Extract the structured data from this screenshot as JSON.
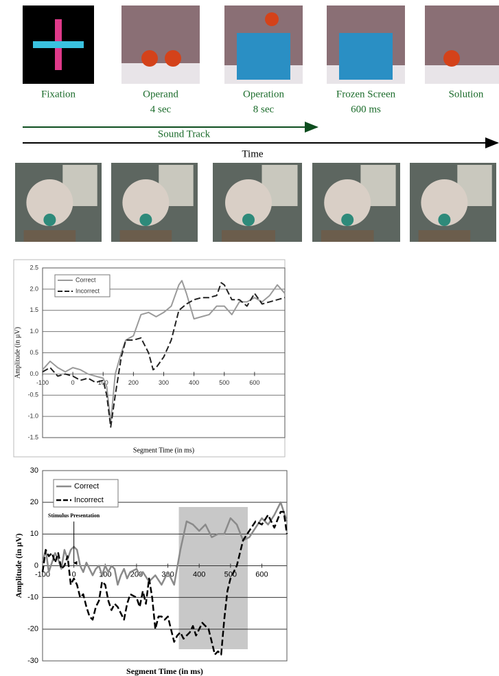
{
  "panels": [
    {
      "label": "Fixation"
    },
    {
      "label": "Operand",
      "duration": "4 sec"
    },
    {
      "label": "Operation",
      "duration": "8 sec"
    },
    {
      "label": "Frozen Screen",
      "duration": "600 ms"
    },
    {
      "label": "Solution"
    }
  ],
  "timeline": {
    "sound_track": "Sound Track",
    "time": "Time"
  },
  "chart_data": [
    {
      "type": "line",
      "xlabel": "Segment Time (in ms)",
      "ylabel": "Amplitude (in µV)",
      "xlim": [
        -100,
        700
      ],
      "ylim": [
        -1.5,
        2.5
      ],
      "xticks": [
        -100,
        0,
        100,
        200,
        300,
        400,
        500,
        600
      ],
      "yticks": [
        -1.5,
        {
          "value": -1,
          "label": "-1.0"
        },
        -0.5,
        {
          "value": 0,
          "label": "0.0"
        },
        0.5,
        {
          "value": 1,
          "label": "1.0"
        },
        1.5,
        {
          "value": 2,
          "label": "2.0"
        },
        2.5
      ],
      "grid": true,
      "series": [
        {
          "name": "Correct",
          "color": "#9a9a9a",
          "dash": false,
          "x": [
            -100,
            -75,
            -50,
            -25,
            0,
            25,
            50,
            75,
            100,
            112,
            125,
            140,
            160,
            175,
            200,
            225,
            250,
            275,
            300,
            325,
            350,
            360,
            375,
            400,
            425,
            450,
            475,
            500,
            525,
            550,
            575,
            600,
            625,
            650,
            675,
            700
          ],
          "values": [
            0.1,
            0.3,
            0.15,
            0.05,
            0.15,
            0.1,
            0.0,
            -0.05,
            -0.1,
            -0.3,
            -1.15,
            0.0,
            0.5,
            0.8,
            0.9,
            1.4,
            1.45,
            1.35,
            1.45,
            1.6,
            2.1,
            2.2,
            1.9,
            1.3,
            1.35,
            1.4,
            1.6,
            1.6,
            1.4,
            1.7,
            1.7,
            1.8,
            1.7,
            1.85,
            2.1,
            1.9
          ]
        },
        {
          "name": "Incorrect",
          "color": "#222222",
          "dash": true,
          "x": [
            -100,
            -75,
            -50,
            -25,
            0,
            25,
            50,
            75,
            100,
            112,
            125,
            140,
            160,
            175,
            200,
            225,
            250,
            265,
            275,
            300,
            325,
            350,
            375,
            400,
            425,
            450,
            475,
            490,
            500,
            525,
            550,
            575,
            600,
            625,
            650,
            675,
            700
          ],
          "values": [
            0.05,
            0.15,
            -0.05,
            0.0,
            -0.05,
            -0.15,
            -0.1,
            -0.2,
            -0.15,
            -0.5,
            -1.25,
            -0.5,
            0.4,
            0.8,
            0.8,
            0.85,
            0.5,
            0.1,
            0.15,
            0.4,
            0.8,
            1.5,
            1.65,
            1.75,
            1.8,
            1.8,
            1.85,
            2.15,
            2.1,
            1.75,
            1.75,
            1.6,
            1.9,
            1.65,
            1.7,
            1.75,
            1.8
          ]
        }
      ]
    },
    {
      "type": "line",
      "xlabel": "Segment Time (in ms)",
      "ylabel": "Amplitude (in µV)",
      "xlim": [
        -100,
        680
      ],
      "ylim": [
        -30,
        30
      ],
      "xticks": [
        -100,
        0,
        100,
        200,
        300,
        400,
        500,
        600
      ],
      "yticks": [
        -30,
        -20,
        -10,
        0,
        10,
        20,
        30
      ],
      "grid": true,
      "annotation": "Stimulus Presentation",
      "highlight": [
        335,
        555
      ],
      "series": [
        {
          "name": "Correct",
          "color": "#8a8a8a",
          "dash": false,
          "x": [
            -100,
            -90,
            -80,
            -70,
            -60,
            -50,
            -40,
            -30,
            -20,
            -10,
            0,
            10,
            20,
            30,
            40,
            50,
            60,
            70,
            80,
            90,
            100,
            110,
            120,
            130,
            140,
            150,
            160,
            170,
            180,
            200,
            210,
            220,
            240,
            260,
            280,
            300,
            320,
            340,
            360,
            380,
            400,
            420,
            440,
            460,
            480,
            500,
            520,
            540,
            560,
            580,
            600,
            620,
            640,
            660,
            680
          ],
          "values": [
            1,
            5,
            -2,
            1,
            4,
            2,
            -1,
            5,
            2,
            5,
            6,
            5,
            0,
            -2,
            1,
            -1,
            -3,
            -1,
            0,
            -3,
            0,
            -2,
            0,
            -1,
            -6,
            -3,
            -1,
            -4,
            -2,
            -1,
            -3,
            -2,
            -5,
            -3,
            -6,
            -2,
            -6,
            5,
            14,
            13,
            11,
            13,
            9,
            10,
            10,
            15,
            13,
            8,
            9,
            12,
            15,
            13,
            16,
            20,
            14
          ]
        },
        {
          "name": "Incorrect",
          "color": "#000000",
          "dash": true,
          "x": [
            -100,
            -90,
            -80,
            -70,
            -60,
            -50,
            -40,
            -30,
            -20,
            -10,
            0,
            10,
            20,
            30,
            40,
            50,
            60,
            70,
            80,
            90,
            100,
            110,
            120,
            130,
            140,
            150,
            160,
            170,
            180,
            200,
            210,
            220,
            230,
            240,
            250,
            260,
            270,
            280,
            290,
            300,
            310,
            320,
            330,
            340,
            350,
            360,
            370,
            380,
            390,
            400,
            410,
            420,
            430,
            440,
            450,
            460,
            470,
            480,
            490,
            500,
            520,
            540,
            560,
            580,
            600,
            620,
            640,
            660,
            670,
            680
          ],
          "values": [
            -2,
            5,
            3,
            4,
            1,
            4,
            -1,
            0,
            3,
            -6,
            -4,
            -6,
            -10,
            -9,
            -13,
            -16,
            -17,
            -13,
            -11,
            -5,
            -6,
            -11,
            -14,
            -12,
            -13,
            -15,
            -17,
            -12,
            -9,
            -10,
            -13,
            -8,
            -12,
            -4,
            -10,
            -20,
            -16,
            -16,
            -17,
            -16,
            -20,
            -24,
            -22,
            -21,
            -23,
            -22,
            -21,
            -19,
            -22,
            -20,
            -18,
            -19,
            -20,
            -24,
            -28,
            -27,
            -28,
            -17,
            -8,
            -4,
            0,
            8,
            11,
            14,
            13,
            16,
            12,
            17,
            17,
            10
          ]
        }
      ]
    }
  ]
}
